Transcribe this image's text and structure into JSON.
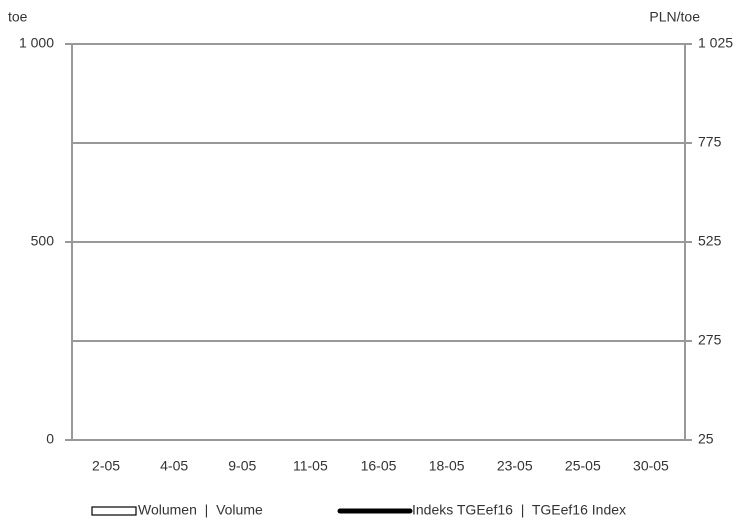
{
  "chart_data": {
    "type": "bar",
    "y_label": "toe",
    "y2_label": "PLN/toe",
    "categories": [
      "2-05",
      "4-05",
      "9-05",
      "11-05",
      "16-05",
      "18-05",
      "23-05",
      "25-05",
      "30-05"
    ],
    "series": [
      {
        "name": "Wolumen  |  Volume",
        "type": "bar",
        "color": "#ffffff",
        "values": [
          null,
          null,
          null,
          null,
          null,
          null,
          null,
          null,
          null
        ]
      },
      {
        "name": "Indeks TGEef16  |  TGEef16 Index",
        "type": "line",
        "axis": "y2",
        "color": "#000000",
        "values": [
          null,
          null,
          null,
          null,
          null,
          null,
          null,
          null,
          null
        ]
      }
    ],
    "ylim": [
      0,
      1000
    ],
    "yticks": [
      0,
      500,
      {
        "value": 1000,
        "label": "1 000"
      }
    ],
    "y2lim": [
      25,
      1025
    ],
    "y2ticks": [
      25,
      275,
      525,
      775,
      {
        "value": 1025,
        "label": "1 025"
      }
    ],
    "grid": true
  }
}
